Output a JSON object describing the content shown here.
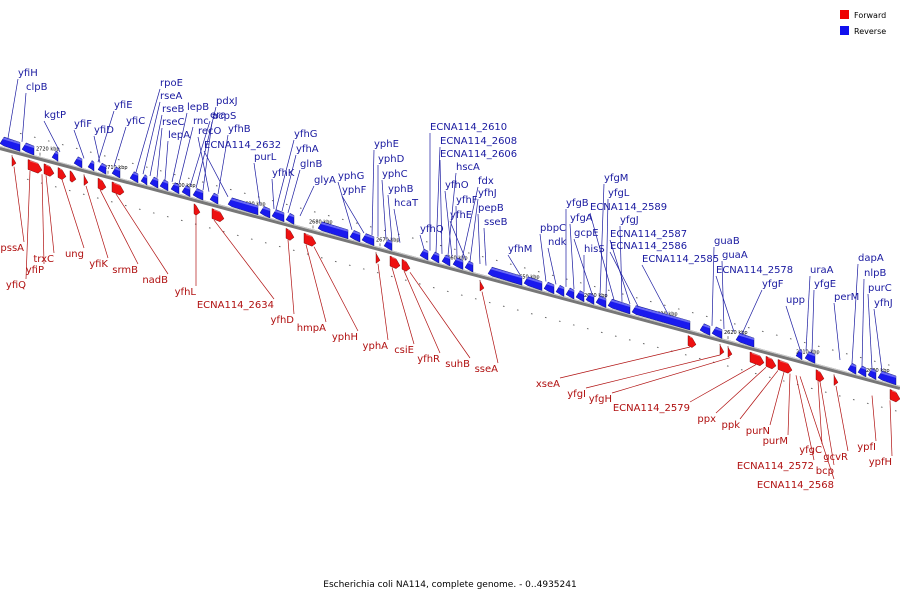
{
  "legend": [
    {
      "label": "Forward",
      "color": "#ee0000"
    },
    {
      "label": "Reverse",
      "color": "#1111ee"
    }
  ],
  "caption": "Escherichia coli NA114, complete genome. - 0..4935241",
  "ticks": [
    "2720 kbp",
    "2710 kbp",
    "2700 kbp",
    "2690 kbp",
    "2680 kbp",
    "2670 kbp",
    "2660 kbp",
    "2650 kbp",
    "2640 kbp",
    "2630 kbp",
    "2620 kbp",
    "2610 kbp",
    "2600 kbp"
  ],
  "reverse_genes": [
    "yfiH",
    "clpB",
    "kgtP",
    "yfiF",
    "yfiE",
    "yfiD",
    "yfiC",
    "rpoE",
    "rseA",
    "rseB",
    "rseC",
    "lepA",
    "lepB",
    "rnc",
    "era",
    "pdxJ",
    "acpS",
    "recO",
    "yfhB",
    "ECNA114_2632",
    "purL",
    "yfhK",
    "yfhG",
    "yfhA",
    "glnB",
    "glyA",
    "yphG",
    "yphF",
    "yphE",
    "yphD",
    "yphC",
    "yphB",
    "hcaT",
    "yfhQ",
    "ECNA114_2610",
    "ECNA114_2608",
    "ECNA114_2606",
    "hscA",
    "yfhO",
    "fdx",
    "yfhF",
    "yfhJ",
    "yfhE",
    "pepB",
    "sseB",
    "yfhM",
    "pbpC",
    "ndk",
    "yfgB",
    "yfgA",
    "hisS",
    "gcpE",
    "yfgM",
    "yfgL",
    "ECNA114_2589",
    "yfgJ",
    "ECNA114_2587",
    "ECNA114_2586",
    "ECNA114_2585",
    "guaB",
    "guaA",
    "ECNA114_2578",
    "yfgF",
    "upp",
    "uraA",
    "yfgE",
    "perM",
    "dapA",
    "nlpB",
    "purC",
    "yfhJ"
  ],
  "forward_genes": [
    "pssA",
    "yfiQ",
    "yfiP",
    "trxC",
    "ung",
    "yfiK",
    "srmB",
    "nadB",
    "yfhL",
    "ECNA114_2634",
    "yfhD",
    "hmpA",
    "yphH",
    "yphA",
    "csiE",
    "yfhR",
    "suhB",
    "sseA",
    "xseA",
    "yfgI",
    "yfgH",
    "ECNA114_2579",
    "ppx",
    "ppk",
    "purN",
    "purM",
    "ECNA114_2572",
    "yfgC",
    "bcp",
    "gcvR",
    "ECNA114_2568",
    "ypfI",
    "ypfH"
  ]
}
